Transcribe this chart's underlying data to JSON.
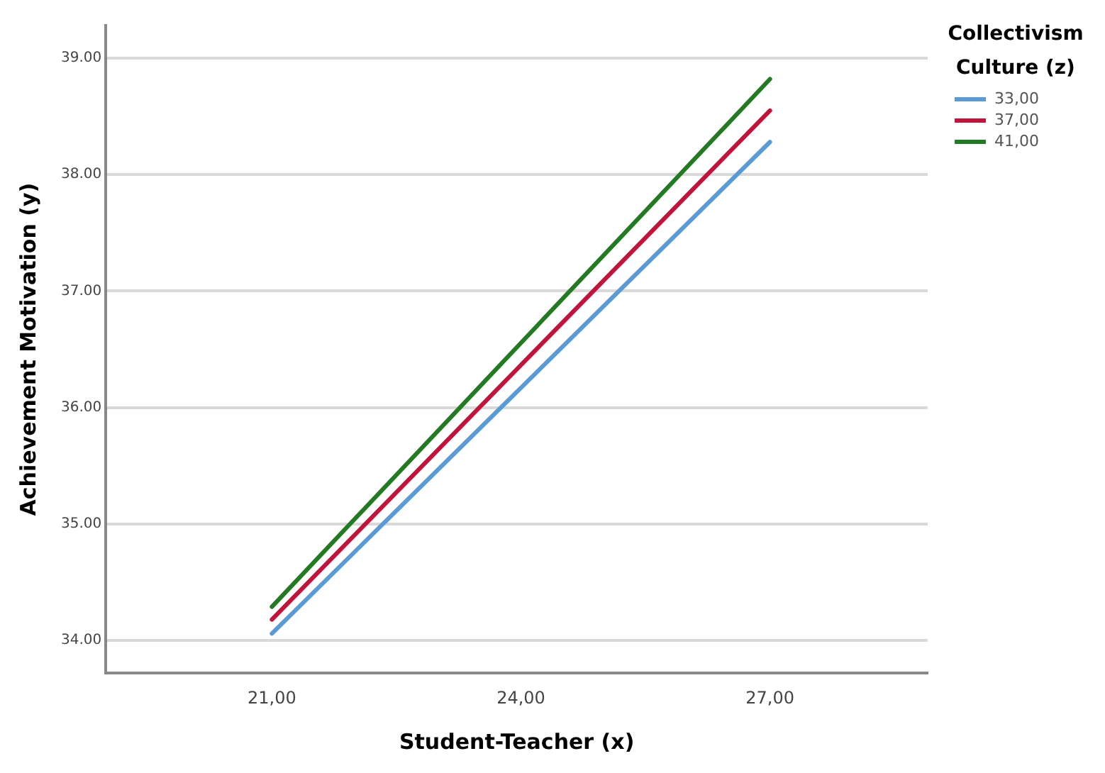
{
  "chart_data": {
    "type": "line",
    "xlabel": "Student-Teacher (x)",
    "ylabel": "Achievement Motivation (y)",
    "legend_title": "Collectivism Culture (z)",
    "x": [
      21,
      27
    ],
    "series": [
      {
        "name": "33,00",
        "color": "#5b9bd5",
        "values": [
          34.06,
          38.28
        ]
      },
      {
        "name": "37,00",
        "color": "#c0143c",
        "values": [
          34.18,
          38.55
        ]
      },
      {
        "name": "41,00",
        "color": "#237a23",
        "values": [
          34.29,
          38.82
        ]
      }
    ],
    "xlim": [
      19,
      28.9
    ],
    "xticks": [
      {
        "value": 21,
        "label": "21,00"
      },
      {
        "value": 24,
        "label": "24,00"
      },
      {
        "value": 27,
        "label": "27,00"
      }
    ],
    "ylim": [
      33.72,
      39.28
    ],
    "yticks": [
      {
        "value": 34,
        "label": "34.00"
      },
      {
        "value": 35,
        "label": "35.00"
      },
      {
        "value": 36,
        "label": "36.00"
      },
      {
        "value": 37,
        "label": "37.00"
      },
      {
        "value": 38,
        "label": "38.00"
      },
      {
        "value": 39,
        "label": "39.00"
      }
    ],
    "grid": "y",
    "legend": "top right",
    "marker": "none",
    "line_style": "solid"
  }
}
